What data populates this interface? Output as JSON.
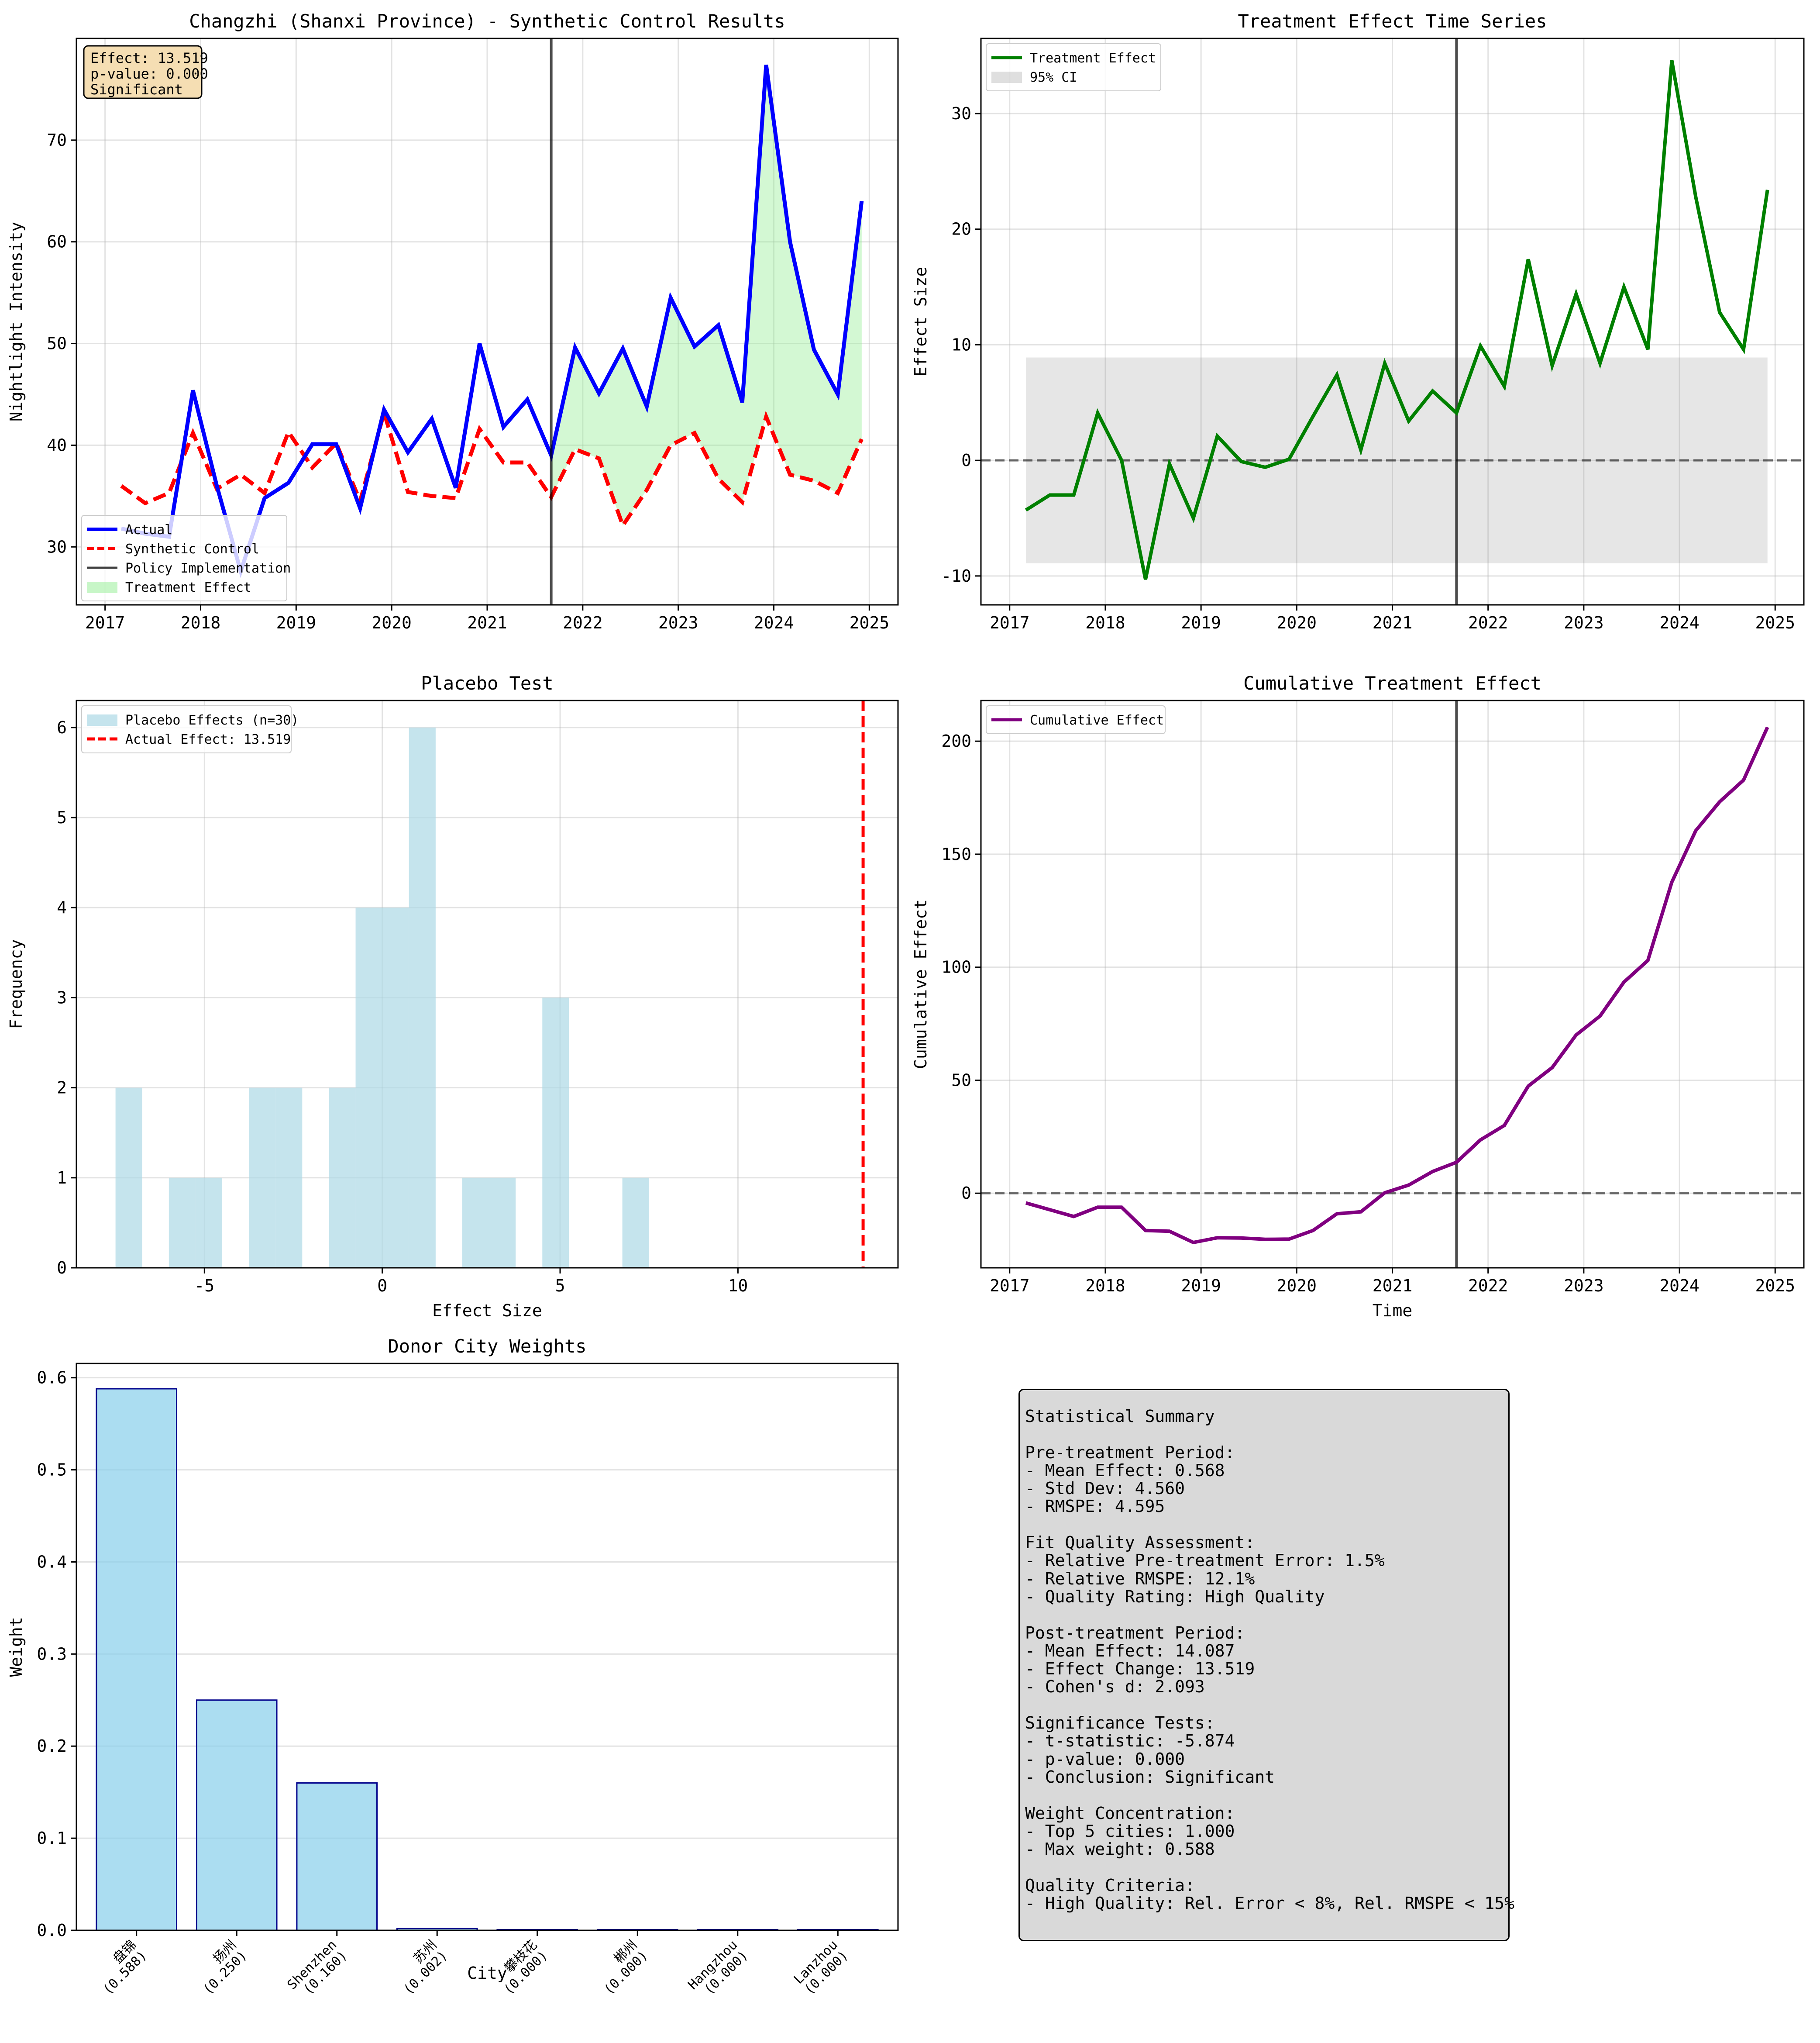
{
  "chart_data": [
    {
      "type": "line",
      "title": "Changzhi (Shanxi Province) - Synthetic Control Results",
      "xlabel": "",
      "ylabel": "Nightlight Intensity",
      "xlim": [
        2016.7,
        2025.3
      ],
      "ylim": [
        24.3,
        80.0
      ],
      "xticks": [
        2017,
        2018,
        2019,
        2020,
        2021,
        2022,
        2023,
        2024,
        2025
      ],
      "yticks": [
        30,
        40,
        50,
        60,
        70
      ],
      "grid": true,
      "legend_position": "lower-left",
      "vertical_line": {
        "x": 2021.67,
        "label": "Policy Implementation"
      },
      "annotation": [
        "Effect: 13.519",
        "p-value: 0.000",
        "Significant"
      ],
      "x": [
        2017.17,
        2017.42,
        2017.67,
        2017.92,
        2018.17,
        2018.42,
        2018.67,
        2018.92,
        2019.17,
        2019.42,
        2019.67,
        2019.92,
        2020.17,
        2020.42,
        2020.67,
        2020.92,
        2021.17,
        2021.42,
        2021.67,
        2021.92,
        2022.17,
        2022.42,
        2022.67,
        2022.92,
        2023.17,
        2023.42,
        2023.67,
        2023.92,
        2024.17,
        2024.42,
        2024.67,
        2024.92
      ],
      "series": [
        {
          "name": "Actual",
          "color": "#0000ff",
          "style": "solid",
          "values": [
            31.8,
            31.3,
            31.0,
            45.4,
            36.0,
            27.6,
            34.8,
            36.3,
            40.1,
            40.1,
            33.8,
            43.5,
            39.3,
            42.6,
            35.8,
            50.0,
            41.8,
            44.5,
            39.0,
            49.6,
            45.1,
            49.5,
            43.8,
            54.5,
            49.7,
            51.8,
            44.2,
            77.4,
            60.0,
            49.4,
            45.0,
            64.0
          ]
        },
        {
          "name": "Synthetic Control",
          "color": "#ff0000",
          "style": "dashed",
          "values": [
            36.0,
            34.3,
            35.3,
            41.2,
            35.7,
            37.1,
            35.3,
            41.3,
            37.8,
            40.2,
            34.5,
            43.2,
            35.4,
            35.0,
            34.8,
            41.6,
            38.3,
            38.3,
            34.9,
            39.6,
            38.7,
            32.1,
            35.6,
            40.0,
            41.2,
            36.7,
            34.4,
            42.8,
            37.1,
            36.5,
            35.3,
            40.6
          ]
        }
      ],
      "fill_label": "Treatment Effect",
      "fill_color": "#90ee90"
    },
    {
      "type": "line",
      "title": "Treatment Effect Time Series",
      "xlabel": "",
      "ylabel": "Effect Size",
      "xlim": [
        2016.7,
        2025.3
      ],
      "ylim": [
        -12.5,
        36.5
      ],
      "xticks": [
        2017,
        2018,
        2019,
        2020,
        2021,
        2022,
        2023,
        2024,
        2025
      ],
      "yticks": [
        -10,
        0,
        10,
        20,
        30
      ],
      "grid": true,
      "legend_position": "top-left",
      "ci_band": {
        "label": "95% CI",
        "x": [
          2017.17,
          2024.92
        ],
        "y": [
          -8.9,
          8.9
        ],
        "color": "#808080"
      },
      "vertical_line": {
        "x": 2021.67
      },
      "reference_line": 0,
      "x": [
        2017.17,
        2017.42,
        2017.67,
        2017.92,
        2018.17,
        2018.42,
        2018.67,
        2018.92,
        2019.17,
        2019.42,
        2019.67,
        2019.92,
        2020.17,
        2020.42,
        2020.67,
        2020.92,
        2021.17,
        2021.42,
        2021.67,
        2021.92,
        2022.17,
        2022.42,
        2022.67,
        2022.92,
        2023.17,
        2023.42,
        2023.67,
        2023.92,
        2024.17,
        2024.42,
        2024.67,
        2024.92
      ],
      "series": [
        {
          "name": "Treatment Effect",
          "color": "#008000",
          "values": [
            -4.3,
            -3.0,
            -3.0,
            4.1,
            0.0,
            -10.3,
            -0.3,
            -5.0,
            2.1,
            -0.1,
            -0.6,
            0.1,
            3.8,
            7.4,
            0.9,
            8.4,
            3.4,
            6.0,
            4.1,
            9.9,
            6.4,
            17.4,
            8.2,
            14.4,
            8.4,
            15.0,
            9.6,
            34.6,
            22.8,
            12.8,
            9.6,
            23.4
          ]
        }
      ]
    },
    {
      "type": "bar",
      "title": "Placebo Test",
      "xlabel": "Effect Size",
      "ylabel": "Frequency",
      "xlim": [
        -8.6,
        14.5
      ],
      "ylim": [
        0,
        6.3
      ],
      "xticks": [
        -5,
        0,
        5,
        10
      ],
      "yticks": [
        0,
        1,
        2,
        3,
        4,
        5,
        6
      ],
      "grid": true,
      "legend_position": "top-left",
      "bar_color": "#add8e6",
      "bin_edges": [
        -7.5,
        -6.75,
        -6.0,
        -5.25,
        -4.5,
        -3.75,
        -3.0,
        -2.25,
        -1.5,
        -0.75,
        0.0,
        0.75,
        1.5,
        2.25,
        3.0,
        3.75,
        4.5,
        5.25,
        6.0,
        6.75,
        7.5
      ],
      "counts": [
        2,
        0,
        1,
        1,
        0,
        2,
        2,
        0,
        2,
        4,
        4,
        6,
        0,
        1,
        1,
        0,
        3,
        0,
        0,
        1
      ],
      "series": [
        {
          "name": "Placebo Effects (n=30)"
        },
        {
          "name": "Actual Effect: 13.519",
          "x": 13.519,
          "color": "#ff0000"
        }
      ]
    },
    {
      "type": "line",
      "title": "Cumulative Treatment Effect",
      "xlabel": "Time",
      "ylabel": "Cumulative Effect",
      "xlim": [
        2016.7,
        2025.3
      ],
      "ylim": [
        -33,
        218
      ],
      "xticks": [
        2017,
        2018,
        2019,
        2020,
        2021,
        2022,
        2023,
        2024,
        2025
      ],
      "yticks": [
        0,
        50,
        100,
        150,
        200
      ],
      "grid": true,
      "legend_position": "top-left",
      "vertical_line": {
        "x": 2021.67
      },
      "reference_line": 0,
      "x": [
        2017.17,
        2017.42,
        2017.67,
        2017.92,
        2018.17,
        2018.42,
        2018.67,
        2018.92,
        2019.17,
        2019.42,
        2019.67,
        2019.92,
        2020.17,
        2020.42,
        2020.67,
        2020.92,
        2021.17,
        2021.42,
        2021.67,
        2021.92,
        2022.17,
        2022.42,
        2022.67,
        2022.92,
        2023.17,
        2023.42,
        2023.67,
        2023.92,
        2024.17,
        2024.42,
        2024.67,
        2024.92
      ],
      "series": [
        {
          "name": "Cumulative Effect",
          "color": "#800080",
          "values": [
            -4.3,
            -7.3,
            -10.3,
            -6.2,
            -6.2,
            -16.5,
            -16.8,
            -21.8,
            -19.7,
            -19.8,
            -20.4,
            -20.3,
            -16.5,
            -9.1,
            -8.2,
            0.2,
            3.6,
            9.6,
            13.7,
            23.6,
            30.0,
            47.4,
            55.6,
            70.0,
            78.4,
            93.4,
            103.0,
            137.6,
            160.4,
            173.2,
            182.8,
            206.2
          ]
        }
      ]
    },
    {
      "type": "bar",
      "title": "Donor City Weights",
      "xlabel": "City",
      "ylabel": "Weight",
      "ylim": [
        0,
        0.6155
      ],
      "yticks": [
        0.0,
        0.1,
        0.2,
        0.3,
        0.4,
        0.5,
        0.6
      ],
      "grid": true,
      "bar_color": "#87ceeb",
      "edge_color": "#00008b",
      "categories": [
        "盘锦\n(0.588)",
        "扬州\n(0.250)",
        "Shenzhen\n(0.160)",
        "苏州\n(0.002)",
        "攀枝花\n(0.000)",
        "郴州\n(0.000)",
        "Hangzhou\n(0.000)",
        "Lanzhou\n(0.000)"
      ],
      "values": [
        0.588,
        0.25,
        0.16,
        0.002,
        0.0,
        0.0,
        0.0,
        0.0
      ]
    }
  ],
  "statistical_summary": {
    "lines": [
      "Statistical Summary",
      "",
      "Pre-treatment Period:",
      "- Mean Effect: 0.568",
      "- Std Dev: 4.560",
      "- RMSPE: 4.595",
      "",
      "Fit Quality Assessment:",
      "- Relative Pre-treatment Error: 1.5%",
      "- Relative RMSPE: 12.1%",
      "- Quality Rating: High Quality",
      "",
      "Post-treatment Period:",
      "- Mean Effect: 14.087",
      "- Effect Change: 13.519",
      "- Cohen's d: 2.093",
      "",
      "Significance Tests:",
      "- t-statistic: -5.874",
      "- p-value: 0.000",
      "- Conclusion: Significant",
      "",
      "Weight Concentration:",
      "- Top 5 cities: 1.000",
      "- Max weight: 0.588",
      "",
      "Quality Criteria:",
      "- High Quality: Rel. Error < 8%, Rel. RMSPE < 15%"
    ]
  }
}
